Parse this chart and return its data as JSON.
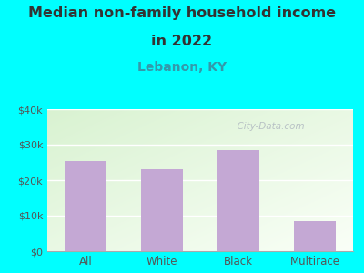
{
  "title_line1": "Median non-family household income",
  "title_line2": "in 2022",
  "subtitle": "Lebanon, KY",
  "categories": [
    "All",
    "White",
    "Black",
    "Multirace"
  ],
  "values": [
    25500,
    23000,
    28500,
    8500
  ],
  "bar_color": "#c4a8d4",
  "title_fontsize": 11.5,
  "subtitle_fontsize": 10,
  "subtitle_color": "#3399aa",
  "title_color": "#333333",
  "bg_color": "#00ffff",
  "ylim": [
    0,
    40000
  ],
  "yticks": [
    0,
    10000,
    20000,
    30000,
    40000
  ],
  "ytick_labels": [
    "$0",
    "$10k",
    "$20k",
    "$30k",
    "$40k"
  ],
  "watermark": "  City-Data.com"
}
